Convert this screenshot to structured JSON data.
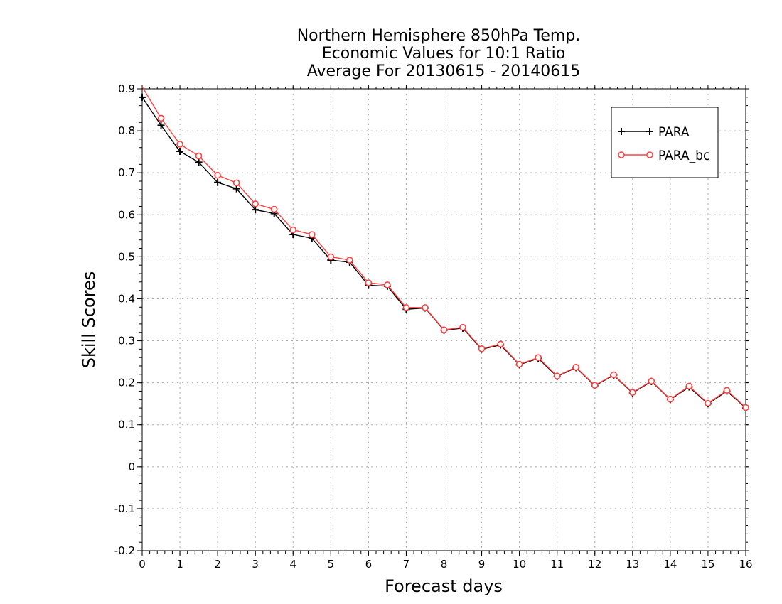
{
  "chart_data": {
    "type": "line",
    "title": [
      "Northern Hemisphere 850hPa Temp.",
      "Economic Values for 10:1 Ratio",
      "Average For 20130615 - 20140615"
    ],
    "xlabel": "Forecast days",
    "ylabel": "Skill Scores",
    "xlim": [
      0,
      16
    ],
    "ylim": [
      -0.2,
      0.9
    ],
    "xticks": [
      "0",
      "1",
      "2",
      "3",
      "4",
      "5",
      "6",
      "7",
      "8",
      "9",
      "10",
      "11",
      "12",
      "13",
      "14",
      "15",
      "16"
    ],
    "yticks": [
      "-0.2",
      "-0.1",
      "0",
      "0.1",
      "0.2",
      "0.3",
      "0.4",
      "0.5",
      "0.6",
      "0.7",
      "0.8",
      "0.9"
    ],
    "grid": true,
    "legend_position": "top-right",
    "x": [
      0,
      0.5,
      1,
      1.5,
      2,
      2.5,
      3,
      3.5,
      4,
      4.5,
      5,
      5.5,
      6,
      6.5,
      7,
      7.5,
      8,
      8.5,
      9,
      9.5,
      10,
      10.5,
      11,
      11.5,
      12,
      12.5,
      13,
      13.5,
      14,
      14.5,
      15,
      15.5,
      16
    ],
    "series": [
      {
        "name": "PARA",
        "color": "#000000",
        "marker": "plus",
        "values": [
          0.88,
          0.813,
          0.751,
          0.725,
          0.677,
          0.662,
          0.612,
          0.603,
          0.553,
          0.544,
          0.492,
          0.487,
          0.432,
          0.43,
          0.375,
          0.378,
          0.325,
          0.33,
          0.28,
          0.29,
          0.243,
          0.258,
          0.215,
          0.236,
          0.193,
          0.218,
          0.176,
          0.203,
          0.16,
          0.19,
          0.15,
          0.18,
          0.14
        ]
      },
      {
        "name": "PARA_bc",
        "color": "#ff4040",
        "marker": "circle",
        "values": [
          0.905,
          0.83,
          0.768,
          0.74,
          0.694,
          0.676,
          0.626,
          0.613,
          0.564,
          0.553,
          0.5,
          0.492,
          0.438,
          0.433,
          0.379,
          0.379,
          0.326,
          0.332,
          0.281,
          0.292,
          0.244,
          0.26,
          0.216,
          0.237,
          0.194,
          0.219,
          0.177,
          0.204,
          0.161,
          0.192,
          0.151,
          0.182,
          0.141
        ]
      }
    ]
  }
}
